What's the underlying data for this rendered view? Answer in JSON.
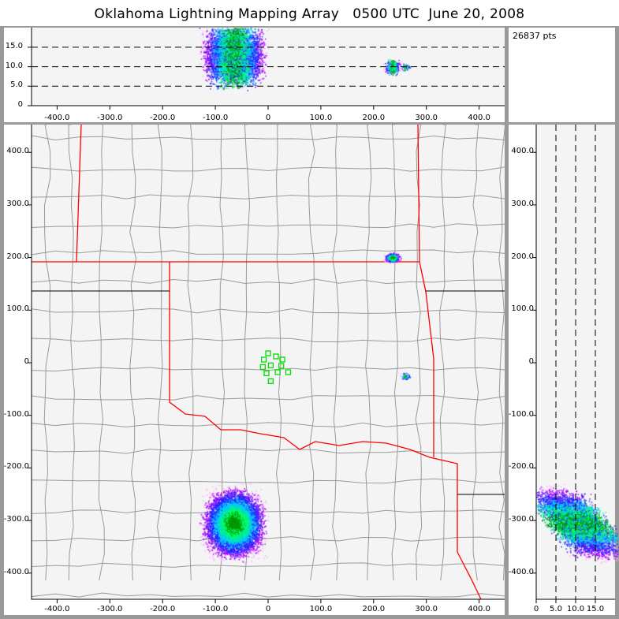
{
  "title": "Oklahoma Lightning Mapping Array   0500 UTC  June 20, 2008",
  "info": {
    "points_label": "26837 pts"
  },
  "colors": {
    "state_border": "#ff0000",
    "county_border": "#999999",
    "station": "#00dd00",
    "plot_bg": "#f4f4f4",
    "density": [
      "#ffaaff",
      "#aa00ff",
      "#2222ff",
      "#00c8ff",
      "#00ff66",
      "#009900"
    ]
  },
  "top_panel": {
    "y_ticks": [
      "0",
      "5.0",
      "10.0",
      "15.0"
    ],
    "x_ticks": [
      "-400.0",
      "-300.0",
      "-200.0",
      "-100.0",
      "0",
      "100.0",
      "200.0",
      "300.0",
      "400.0"
    ],
    "y_dashed": [
      5,
      10,
      15
    ]
  },
  "main_panel": {
    "y_ticks": [
      "400.0",
      "300.0",
      "200.0",
      "100.0",
      "0",
      "-100.0",
      "-200.0",
      "-300.0",
      "-400.0"
    ],
    "x_ticks": [
      "-400.0",
      "-300.0",
      "-200.0",
      "-100.0",
      "0",
      "100.0",
      "200.0",
      "300.0",
      "400.0"
    ]
  },
  "right_panel": {
    "x_ticks": [
      "0",
      "5.0",
      "10.0",
      "15.0"
    ],
    "y_ticks": [
      "400.0",
      "300.0",
      "200.0",
      "100.0",
      "0",
      "-100.0",
      "-200.0",
      "-300.0",
      "-400.0"
    ],
    "x_dashed": [
      5,
      10,
      15
    ]
  },
  "chart_data": {
    "type": "scatter",
    "xlim": [
      -450,
      450
    ],
    "ylim": [
      -450,
      450
    ],
    "zlim": [
      0,
      20
    ],
    "total_points": 26837,
    "clusters": [
      {
        "x": -70,
        "y": -310,
        "z_range": [
          5,
          20
        ],
        "share": 0.93
      },
      {
        "x": 230,
        "y": 200,
        "z_range": [
          8,
          12
        ],
        "share": 0.05
      },
      {
        "x": 260,
        "y": -25,
        "z_range": [
          9,
          11
        ],
        "share": 0.02
      }
    ],
    "stations": [
      [
        0,
        18
      ],
      [
        -8,
        6
      ],
      [
        15,
        12
      ],
      [
        27,
        6
      ],
      [
        -10,
        -8
      ],
      [
        5,
        -5
      ],
      [
        25,
        -6
      ],
      [
        38,
        -18
      ],
      [
        -3,
        -20
      ],
      [
        18,
        -18
      ],
      [
        5,
        -35
      ]
    ]
  }
}
